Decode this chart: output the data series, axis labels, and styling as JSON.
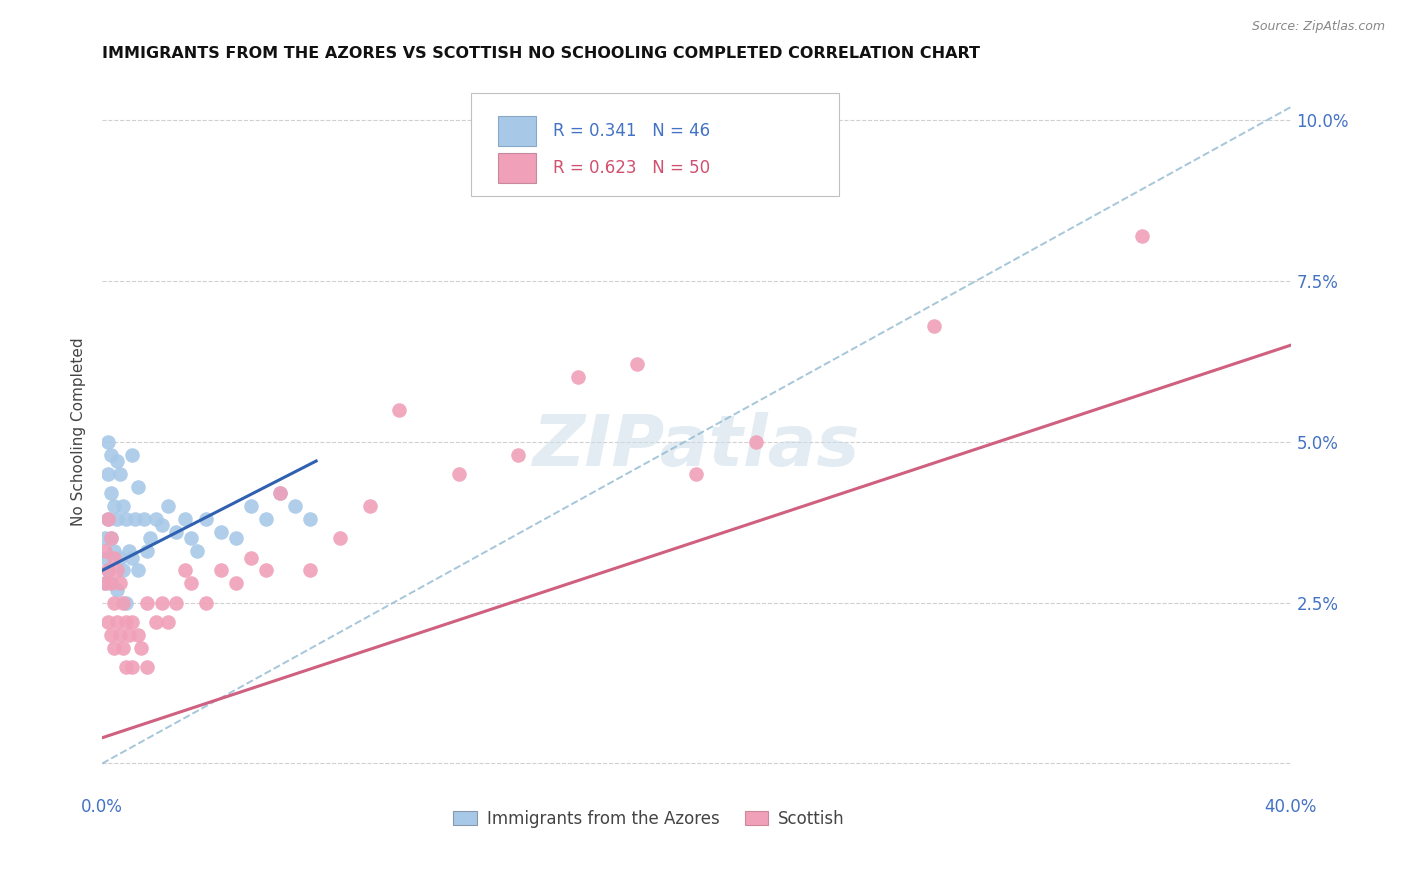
{
  "title": "IMMIGRANTS FROM THE AZORES VS SCOTTISH NO SCHOOLING COMPLETED CORRELATION CHART",
  "source": "Source: ZipAtlas.com",
  "ylabel": "No Schooling Completed",
  "ytick_values": [
    0.0,
    0.025,
    0.05,
    0.075,
    0.1
  ],
  "ytick_labels": [
    "",
    "2.5%",
    "5.0%",
    "7.5%",
    "10.0%"
  ],
  "xlim": [
    0.0,
    0.4
  ],
  "ylim": [
    -0.004,
    0.107
  ],
  "legend_label1": "Immigrants from the Azores",
  "legend_label2": "Scottish",
  "color_blue": "#a8c8e8",
  "color_pink": "#f0a0b8",
  "line_blue": "#3060b0",
  "line_pink": "#d06080",
  "line_dashed_color": "#90b8d0",
  "background_color": "#ffffff",
  "grid_color": "#d0d0d0",
  "azores_x": [
    0.001,
    0.001,
    0.001,
    0.002,
    0.002,
    0.002,
    0.002,
    0.003,
    0.003,
    0.003,
    0.003,
    0.004,
    0.004,
    0.005,
    0.005,
    0.005,
    0.006,
    0.006,
    0.007,
    0.007,
    0.008,
    0.008,
    0.009,
    0.01,
    0.01,
    0.011,
    0.012,
    0.012,
    0.014,
    0.015,
    0.016,
    0.018,
    0.02,
    0.022,
    0.025,
    0.028,
    0.03,
    0.032,
    0.035,
    0.04,
    0.045,
    0.05,
    0.055,
    0.06,
    0.065,
    0.07
  ],
  "azores_y": [
    0.035,
    0.032,
    0.028,
    0.05,
    0.045,
    0.038,
    0.03,
    0.048,
    0.042,
    0.035,
    0.028,
    0.04,
    0.033,
    0.047,
    0.038,
    0.027,
    0.045,
    0.032,
    0.04,
    0.03,
    0.038,
    0.025,
    0.033,
    0.048,
    0.032,
    0.038,
    0.043,
    0.03,
    0.038,
    0.033,
    0.035,
    0.038,
    0.037,
    0.04,
    0.036,
    0.038,
    0.035,
    0.033,
    0.038,
    0.036,
    0.035,
    0.04,
    0.038,
    0.042,
    0.04,
    0.038
  ],
  "scottish_x": [
    0.001,
    0.001,
    0.002,
    0.002,
    0.002,
    0.003,
    0.003,
    0.003,
    0.004,
    0.004,
    0.004,
    0.005,
    0.005,
    0.006,
    0.006,
    0.007,
    0.007,
    0.008,
    0.008,
    0.009,
    0.01,
    0.01,
    0.012,
    0.013,
    0.015,
    0.015,
    0.018,
    0.02,
    0.022,
    0.025,
    0.028,
    0.03,
    0.035,
    0.04,
    0.045,
    0.05,
    0.055,
    0.06,
    0.07,
    0.08,
    0.09,
    0.1,
    0.12,
    0.14,
    0.16,
    0.18,
    0.2,
    0.22,
    0.28,
    0.35
  ],
  "scottish_y": [
    0.033,
    0.028,
    0.038,
    0.03,
    0.022,
    0.035,
    0.028,
    0.02,
    0.032,
    0.025,
    0.018,
    0.03,
    0.022,
    0.028,
    0.02,
    0.025,
    0.018,
    0.022,
    0.015,
    0.02,
    0.022,
    0.015,
    0.02,
    0.018,
    0.025,
    0.015,
    0.022,
    0.025,
    0.022,
    0.025,
    0.03,
    0.028,
    0.025,
    0.03,
    0.028,
    0.032,
    0.03,
    0.042,
    0.03,
    0.035,
    0.04,
    0.055,
    0.045,
    0.048,
    0.06,
    0.062,
    0.045,
    0.05,
    0.068,
    0.082
  ],
  "azores_trend_x": [
    0.0,
    0.072
  ],
  "azores_trend_y": [
    0.03,
    0.047
  ],
  "scottish_trend_x": [
    0.0,
    0.4
  ],
  "scottish_trend_y": [
    0.004,
    0.065
  ],
  "dashed_line_x": [
    0.0,
    0.4
  ],
  "dashed_line_y": [
    0.0,
    0.102
  ]
}
